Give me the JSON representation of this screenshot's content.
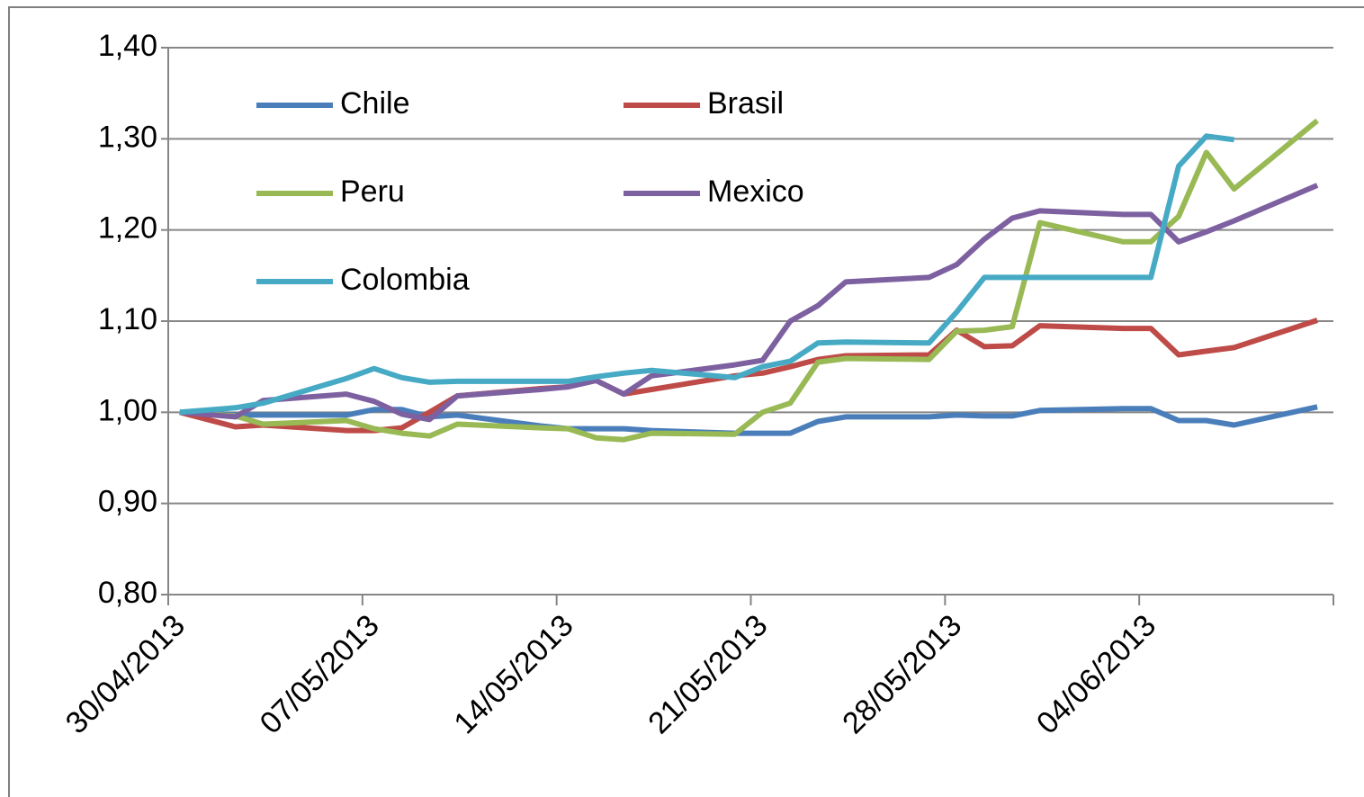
{
  "chart_data": {
    "type": "line",
    "x": [
      "30/04/2013",
      "02/05/2013",
      "03/05/2013",
      "06/05/2013",
      "07/05/2013",
      "08/05/2013",
      "09/05/2013",
      "10/05/2013",
      "13/05/2013",
      "14/05/2013",
      "15/05/2013",
      "16/05/2013",
      "17/05/2013",
      "20/05/2013",
      "21/05/2013",
      "22/05/2013",
      "23/05/2013",
      "24/05/2013",
      "27/05/2013",
      "28/05/2013",
      "29/05/2013",
      "30/05/2013",
      "31/05/2013",
      "03/06/2013",
      "04/06/2013",
      "05/06/2013",
      "06/06/2013",
      "07/06/2013",
      "10/06/2013"
    ],
    "series": [
      {
        "name": "Chile",
        "color": "#4a7ebb",
        "values": [
          1.0,
          0.997,
          0.997,
          0.997,
          1.003,
          1.003,
          0.995,
          0.997,
          0.985,
          0.982,
          0.982,
          0.982,
          0.98,
          0.977,
          0.977,
          0.977,
          0.99,
          0.995,
          0.995,
          0.997,
          0.996,
          0.996,
          1.002,
          1.004,
          1.004,
          0.991,
          0.991,
          0.986,
          1.006
        ]
      },
      {
        "name": "Brasil",
        "color": "#be4b48",
        "values": [
          1.0,
          0.984,
          0.986,
          0.98,
          0.98,
          0.983,
          1.0,
          1.018,
          1.026,
          1.028,
          1.035,
          1.02,
          1.025,
          1.04,
          1.043,
          1.05,
          1.058,
          1.062,
          1.063,
          1.09,
          1.072,
          1.073,
          1.095,
          1.092,
          1.092,
          1.063,
          1.067,
          1.071,
          1.101
        ]
      },
      {
        "name": "Peru",
        "color": "#98b954",
        "values": [
          1.0,
          0.996,
          0.987,
          0.991,
          0.982,
          0.977,
          0.974,
          0.987,
          0.983,
          0.982,
          0.972,
          0.97,
          0.977,
          0.976,
          1.0,
          1.01,
          1.055,
          1.059,
          1.058,
          1.089,
          1.09,
          1.094,
          1.208,
          1.187,
          1.187,
          1.215,
          1.285,
          1.245,
          1.32
        ]
      },
      {
        "name": "Mexico",
        "color": "#7d60a0",
        "values": [
          1.0,
          0.995,
          1.013,
          1.02,
          1.012,
          0.998,
          0.992,
          1.018,
          1.025,
          1.028,
          1.035,
          1.02,
          1.04,
          1.052,
          1.057,
          1.1,
          1.117,
          1.143,
          1.148,
          1.162,
          1.19,
          1.213,
          1.221,
          1.217,
          1.217,
          1.187,
          1.198,
          1.21,
          1.249
        ]
      },
      {
        "name": "Colombia",
        "color": "#46aac5",
        "values": [
          1.0,
          1.005,
          1.01,
          1.037,
          1.048,
          1.038,
          1.033,
          1.034,
          1.034,
          1.034,
          1.039,
          1.043,
          1.046,
          1.038,
          1.05,
          1.056,
          1.076,
          1.077,
          1.076,
          1.11,
          1.148,
          1.148,
          1.148,
          1.148,
          1.148,
          1.27,
          1.303,
          1.299,
          null
        ]
      }
    ],
    "xlim": [
      "30/04/2013",
      "11/06/2013"
    ],
    "xticks": [
      "30/04/2013",
      "07/05/2013",
      "14/05/2013",
      "21/05/2013",
      "28/05/2013",
      "04/06/2013"
    ],
    "ylim": [
      0.8,
      1.4
    ],
    "yticks": [
      {
        "value": 0.8,
        "label": "0,80"
      },
      {
        "value": 0.9,
        "label": "0,90"
      },
      {
        "value": 1.0,
        "label": "1,00"
      },
      {
        "value": 1.1,
        "label": "1,10"
      },
      {
        "value": 1.2,
        "label": "1,20"
      },
      {
        "value": 1.3,
        "label": "1,30"
      },
      {
        "value": 1.4,
        "label": "1,40"
      }
    ],
    "grid": true
  }
}
